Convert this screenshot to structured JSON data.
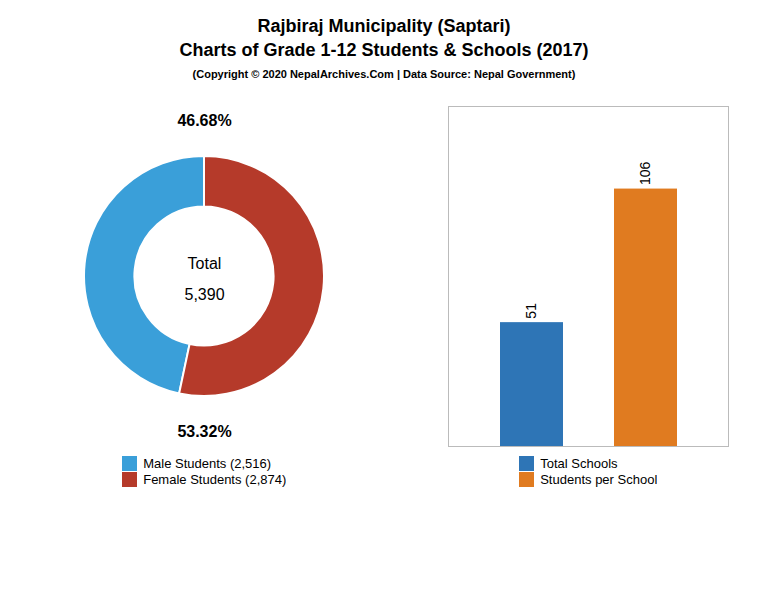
{
  "chart_data": [
    {
      "type": "pie",
      "title": "Rajbiraj Municipality (Saptari)",
      "subtitle": "Charts of Grade 1-12 Students & Schools (2017)",
      "annotations": [
        "(Copyright © 2020 NepalArchives.Com | Data Source: Nepal Government)",
        "Total",
        "5,390"
      ],
      "categories": [
        "Male Students (2,516)",
        "Female Students (2,874)"
      ],
      "values": [
        46.68,
        53.32
      ],
      "value_labels": [
        "46.68%",
        "53.32%"
      ],
      "colors": [
        "#3a9fd9",
        "#b53a2a"
      ],
      "data_labels": true,
      "legend": "bottom"
    },
    {
      "type": "bar",
      "categories": [
        "Total Schools",
        "Students per School"
      ],
      "values": [
        51,
        106
      ],
      "colors": [
        "#2e75b6",
        "#e07b20"
      ],
      "ylim": [
        0,
        140
      ],
      "tick_labels": false,
      "grid": false,
      "data_labels": true,
      "legend": "bottom"
    }
  ]
}
